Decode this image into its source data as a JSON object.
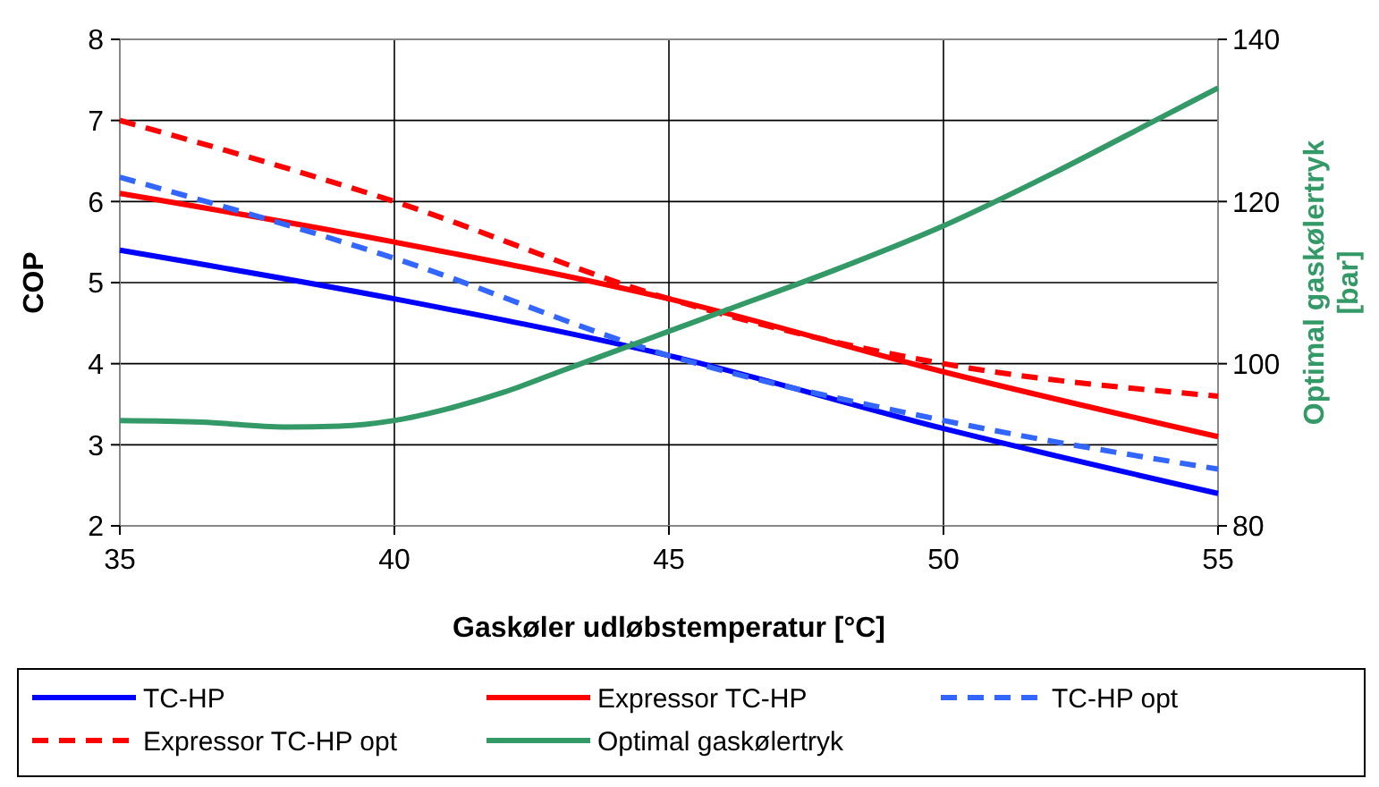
{
  "chart_data": {
    "type": "line",
    "xlabel": "Gaskøler udløbstemperatur [°C]",
    "ylabel": "COP",
    "y2label": "Optimal gaskølertryk [bar]",
    "xlim": [
      35,
      55
    ],
    "xticks": [
      35,
      40,
      45,
      50,
      55
    ],
    "ylim": [
      2,
      8
    ],
    "yticks": [
      2,
      3,
      4,
      5,
      6,
      7,
      8
    ],
    "y2lim": [
      80,
      140
    ],
    "y2ticks": [
      80,
      100,
      120,
      140
    ],
    "grid": true,
    "legend": "bottom",
    "x": [
      35,
      40,
      45,
      50,
      55
    ],
    "series": [
      {
        "name": "TC-HP",
        "color": "#0000ff",
        "values": [
          5.4,
          4.8,
          4.1,
          3.2,
          2.4
        ],
        "line_style": "solid"
      },
      {
        "name": "Expressor TC-HP",
        "color": "#ff0000",
        "values": [
          6.1,
          5.5,
          4.8,
          3.9,
          3.1
        ],
        "line_style": "solid"
      },
      {
        "name": "TC-HP opt",
        "color": "#3366ff",
        "values": [
          6.3,
          5.3,
          4.1,
          3.3,
          2.7
        ],
        "line_style": "dashed"
      },
      {
        "name": "Expressor TC-HP opt",
        "color": "#ff0000",
        "values": [
          7.0,
          6.0,
          4.8,
          4.0,
          3.6
        ],
        "line_style": "dashed"
      },
      {
        "name": "Optimal gaskølertryk",
        "color": "#339966",
        "axis": "y2",
        "x": [
          35,
          36.5,
          38,
          39,
          40,
          41,
          42,
          43,
          44,
          45,
          46,
          48,
          50,
          52,
          54,
          55
        ],
        "values": [
          93,
          92.8,
          92.2,
          92.3,
          93,
          94.5,
          96.5,
          99,
          101.5,
          104,
          106.5,
          111.5,
          117,
          123.5,
          130.5,
          134
        ],
        "line_style": "solid"
      }
    ]
  }
}
